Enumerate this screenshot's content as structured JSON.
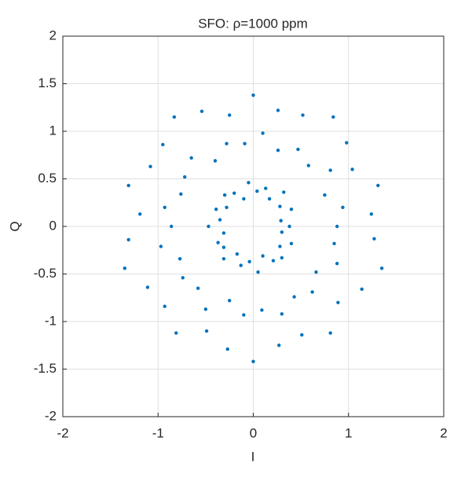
{
  "chart_data": {
    "type": "scatter",
    "title": "SFO: ρ=1000 ppm",
    "xlabel": "I",
    "ylabel": "Q",
    "color": "#0072bd",
    "grid": true,
    "xlim": [
      -2,
      2
    ],
    "ylim": [
      -2,
      2
    ],
    "xticks": [
      -2,
      -1,
      0,
      1,
      2
    ],
    "yticks": [
      -2,
      -1.5,
      -1,
      -0.5,
      0,
      0.5,
      1,
      1.5,
      2
    ],
    "x": [
      0.38,
      0.29,
      0.4,
      0.28,
      0.32,
      0.17,
      0.13,
      0.04,
      -0.05,
      -0.1,
      -0.2,
      -0.3,
      -0.28,
      -0.39,
      -0.35,
      -0.47,
      -0.31,
      -0.37,
      -0.31,
      -0.31,
      -0.17,
      -0.13,
      -0.04,
      0.05,
      0.1,
      0.21,
      0.3,
      0.28,
      0.4,
      0.3,
      0.88,
      0.94,
      0.75,
      0.81,
      0.58,
      0.47,
      0.26,
      0.1,
      -0.09,
      -0.28,
      -0.4,
      -0.65,
      -0.72,
      -0.76,
      -0.93,
      -0.86,
      -0.97,
      -0.77,
      -0.74,
      -0.58,
      -0.5,
      -0.25,
      -0.1,
      0.09,
      0.3,
      0.43,
      0.62,
      0.66,
      0.88,
      0.85,
      1.24,
      1.31,
      1.04,
      0.98,
      0.84,
      0.52,
      0.26,
      0,
      -0.25,
      -0.54,
      -0.83,
      -0.95,
      -1.08,
      -1.31,
      -1.19,
      -1.31,
      -1.35,
      -1.11,
      -0.93,
      -0.81,
      -0.49,
      -0.27,
      0,
      0.27,
      0.51,
      0.81,
      0.89,
      1.14,
      1.35,
      1.27
    ],
    "values": [
      0,
      0.06,
      0.18,
      0.21,
      0.36,
      0.29,
      0.4,
      0.37,
      0.46,
      0.29,
      0.35,
      0.33,
      0.2,
      0.18,
      0.07,
      0,
      -0.07,
      -0.17,
      -0.22,
      -0.34,
      -0.29,
      -0.41,
      -0.37,
      -0.48,
      -0.31,
      -0.36,
      -0.33,
      -0.21,
      -0.18,
      -0.06,
      0,
      0.2,
      0.33,
      0.59,
      0.64,
      0.81,
      0.8,
      0.98,
      0.87,
      0.87,
      0.69,
      0.72,
      0.52,
      0.34,
      0.2,
      0,
      -0.21,
      -0.34,
      -0.54,
      -0.65,
      -0.87,
      -0.78,
      -0.93,
      -0.88,
      -0.92,
      -0.74,
      -0.69,
      -0.48,
      -0.39,
      -0.18,
      0.13,
      0.43,
      0.6,
      0.88,
      1.15,
      1.17,
      1.22,
      1.38,
      1.17,
      1.21,
      1.15,
      0.86,
      0.63,
      0.43,
      0.13,
      -0.14,
      -0.44,
      -0.64,
      -0.84,
      -1.12,
      -1.1,
      -1.29,
      -1.42,
      -1.25,
      -1.14,
      -1.12,
      -0.8,
      -0.66,
      -0.44,
      -0.13
    ]
  }
}
